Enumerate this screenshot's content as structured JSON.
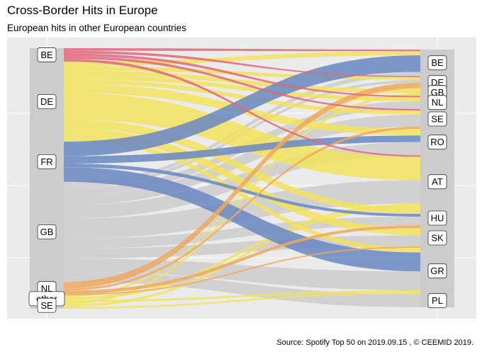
{
  "title": "Cross-Border Hits in Europe",
  "subtitle": "European hits in other European countries",
  "caption": "Source: Spotify Top 50 on 2019.09.15 , © CEEMID 2019.",
  "colors": {
    "background": "#ebebeb",
    "gridline": "#ffffff",
    "stratum": "#cccccc",
    "BE": "#e3667a",
    "DE": "#f2e35e",
    "FR": "#6a87c2",
    "GB": "#cccccc",
    "NL": "#eea85f",
    "other": "#f2e35e",
    "SE": "#f2e35e"
  },
  "chart_data": {
    "type": "alluvial",
    "source_axis": [
      "BE",
      "DE",
      "FR",
      "GB",
      "NL",
      "other",
      "SE"
    ],
    "target_axis": [
      "BE",
      "DE",
      "GB",
      "NL",
      "SE",
      "RO",
      "AT",
      "HU",
      "SK",
      "GR",
      "PL"
    ],
    "source_weights": {
      "BE": 2,
      "DE": 12,
      "FR": 6,
      "GB": 15,
      "NL": 2,
      "other": 1,
      "SE": 1
    },
    "target_weights": {
      "BE": 4,
      "DE": 2,
      "GB": 1,
      "NL": 2,
      "SE": 3,
      "RO": 4,
      "AT": 8,
      "HU": 3,
      "SK": 3,
      "GR": 7,
      "PL": 2
    },
    "flows": [
      {
        "from": "BE",
        "to": "BE",
        "value": 0.2
      },
      {
        "from": "BE",
        "to": "DE",
        "value": 0.2
      },
      {
        "from": "BE",
        "to": "NL",
        "value": 0.2
      },
      {
        "from": "BE",
        "to": "SE",
        "value": 0.2
      },
      {
        "from": "BE",
        "to": "AT",
        "value": 0.2
      },
      {
        "from": "DE",
        "to": "BE",
        "value": 0.5
      },
      {
        "from": "DE",
        "to": "DE",
        "value": 0.5
      },
      {
        "from": "DE",
        "to": "GB",
        "value": 0.5
      },
      {
        "from": "DE",
        "to": "NL",
        "value": 0.5
      },
      {
        "from": "DE",
        "to": "SE",
        "value": 0.5
      },
      {
        "from": "DE",
        "to": "RO",
        "value": 1
      },
      {
        "from": "DE",
        "to": "AT",
        "value": 3
      },
      {
        "from": "DE",
        "to": "HU",
        "value": 1
      },
      {
        "from": "DE",
        "to": "SK",
        "value": 1
      },
      {
        "from": "DE",
        "to": "GR",
        "value": 0.5
      },
      {
        "from": "FR",
        "to": "BE",
        "value": 2
      },
      {
        "from": "FR",
        "to": "RO",
        "value": 1
      },
      {
        "from": "FR",
        "to": "HU",
        "value": 0.5
      },
      {
        "from": "FR",
        "to": "GR",
        "value": 2
      },
      {
        "from": "GB",
        "to": "BE",
        "value": 0.5
      },
      {
        "from": "GB",
        "to": "DE",
        "value": 0.5
      },
      {
        "from": "GB",
        "to": "NL",
        "value": 1
      },
      {
        "from": "GB",
        "to": "SE",
        "value": 1.5
      },
      {
        "from": "GB",
        "to": "RO",
        "value": 2
      },
      {
        "from": "GB",
        "to": "AT",
        "value": 3
      },
      {
        "from": "GB",
        "to": "HU",
        "value": 1.5
      },
      {
        "from": "GB",
        "to": "SK",
        "value": 1.5
      },
      {
        "from": "GB",
        "to": "GR",
        "value": 2
      },
      {
        "from": "GB",
        "to": "PL",
        "value": 1.5
      },
      {
        "from": "NL",
        "to": "DE",
        "value": 1
      },
      {
        "from": "NL",
        "to": "SE",
        "value": 0.3
      },
      {
        "from": "NL",
        "to": "HU",
        "value": 0.5
      },
      {
        "from": "NL",
        "to": "SK",
        "value": 0.2
      },
      {
        "from": "other",
        "to": "DE",
        "value": 0.2
      },
      {
        "from": "other",
        "to": "AT",
        "value": 0.3
      },
      {
        "from": "other",
        "to": "GR",
        "value": 0.2
      },
      {
        "from": "SE",
        "to": "GB",
        "value": 0.3
      },
      {
        "from": "SE",
        "to": "AT",
        "value": 0.3
      },
      {
        "from": "SE",
        "to": "GR",
        "value": 0.2
      }
    ]
  }
}
